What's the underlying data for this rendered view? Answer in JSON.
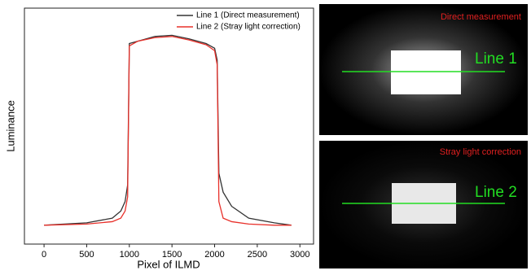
{
  "chart_data": {
    "type": "line",
    "xlabel": "Pixel of ILMD",
    "ylabel": "Luminance",
    "x": [
      0,
      500,
      800,
      900,
      950,
      980,
      1000,
      1100,
      1300,
      1500,
      1700,
      1900,
      2000,
      2030,
      2050,
      2100,
      2200,
      2400,
      2700,
      2900
    ],
    "series": [
      {
        "name": "Line 1 (Direct measurement)",
        "color": "#333333",
        "values": [
          8,
          9,
          11,
          14,
          18,
          25,
          85,
          86,
          88,
          88.5,
          87,
          85,
          83,
          78,
          30,
          22,
          16,
          11,
          9,
          8
        ]
      },
      {
        "name": "Line 2 (Stray light correction)",
        "color": "#e8302a",
        "values": [
          8,
          8.5,
          9.5,
          11,
          14,
          20,
          84,
          86,
          87.5,
          88,
          86.5,
          84.5,
          82,
          76,
          18,
          11,
          9.5,
          8.5,
          8,
          8
        ]
      }
    ],
    "xlim": [
      -230,
      3160
    ],
    "xticks": [
      0,
      500,
      1000,
      1500,
      2000,
      2500,
      3000
    ],
    "ylim": [
      0,
      100
    ],
    "legend": "upper-right"
  },
  "panels": [
    {
      "caption": "Direct measurement",
      "line_label": "Line 1"
    },
    {
      "caption": "Stray light correction",
      "line_label": "Line 2"
    }
  ]
}
